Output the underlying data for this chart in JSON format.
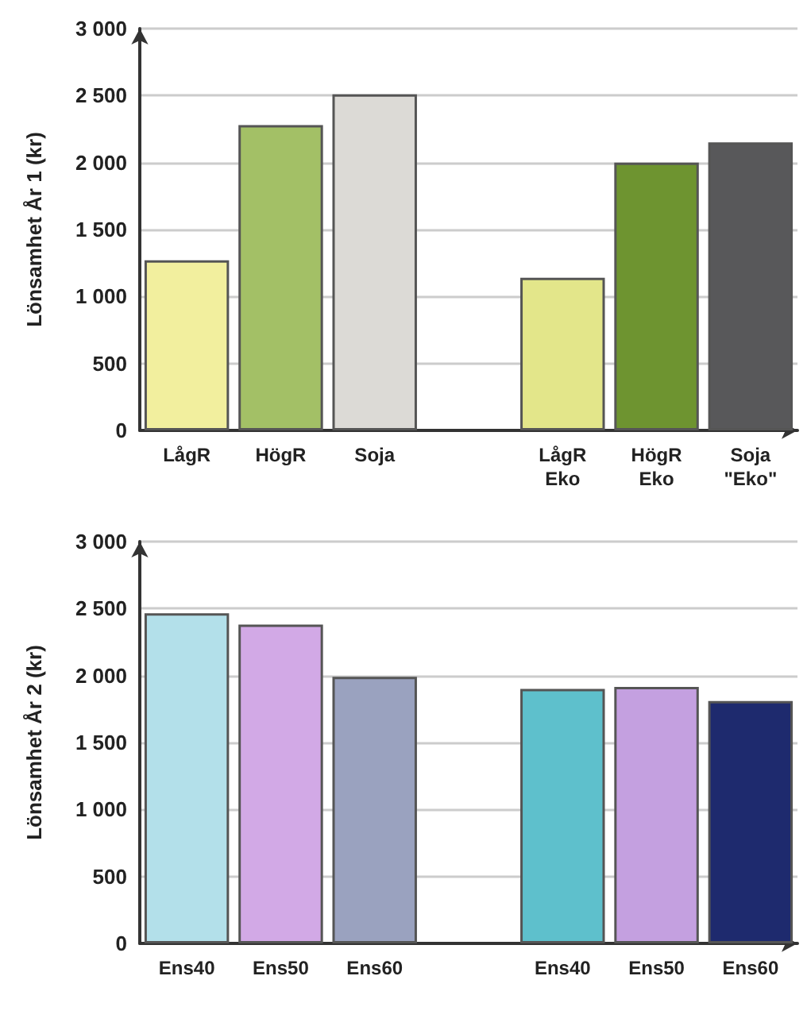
{
  "chart_data": [
    {
      "type": "bar",
      "ylabel": "Lönsamhet År 1 (kr)",
      "categories": [
        "LågR",
        "HögR",
        "Soja",
        null,
        "LågR Eko",
        "HögR Eko",
        "Soja \"Eko\""
      ],
      "values": [
        1270,
        2280,
        2510,
        null,
        1140,
        2000,
        2150
      ],
      "colors": [
        "#f2ef9e",
        "#a3c066",
        "#dcdad6",
        null,
        "#e3e68a",
        "#6e9430",
        "#58585a"
      ],
      "ylim": [
        0,
        3000
      ],
      "yticks": [
        {
          "value": 0,
          "label": "0"
        },
        {
          "value": 500,
          "label": "500"
        },
        {
          "value": 1000,
          "label": "1 000"
        },
        {
          "value": 1500,
          "label": "1 500"
        },
        {
          "value": 2000,
          "label": "2 000"
        },
        {
          "value": 2500,
          "label": "2 500"
        },
        {
          "value": 3000,
          "label": "3 000"
        }
      ],
      "grid": "y"
    },
    {
      "type": "bar",
      "ylabel": "Lönsamhet År 2 (kr)",
      "categories": [
        "Ens40",
        "Ens50",
        "Ens60",
        null,
        "Ens40",
        "Ens50",
        "Ens60"
      ],
      "values": [
        2465,
        2380,
        1990,
        null,
        1900,
        1915,
        1810
      ],
      "colors": [
        "#b3e0ea",
        "#d2a9e6",
        "#9aa2bf",
        null,
        "#5ec0cc",
        "#c4a0e0",
        "#1e2a6e"
      ],
      "ylim": [
        0,
        3000
      ],
      "yticks": [
        {
          "value": 0,
          "label": "0"
        },
        {
          "value": 500,
          "label": "500"
        },
        {
          "value": 1000,
          "label": "1 000"
        },
        {
          "value": 1500,
          "label": "1 500"
        },
        {
          "value": 2000,
          "label": "2 000"
        },
        {
          "value": 2500,
          "label": "2 500"
        },
        {
          "value": 3000,
          "label": "3 000"
        }
      ],
      "grid": "y"
    }
  ]
}
